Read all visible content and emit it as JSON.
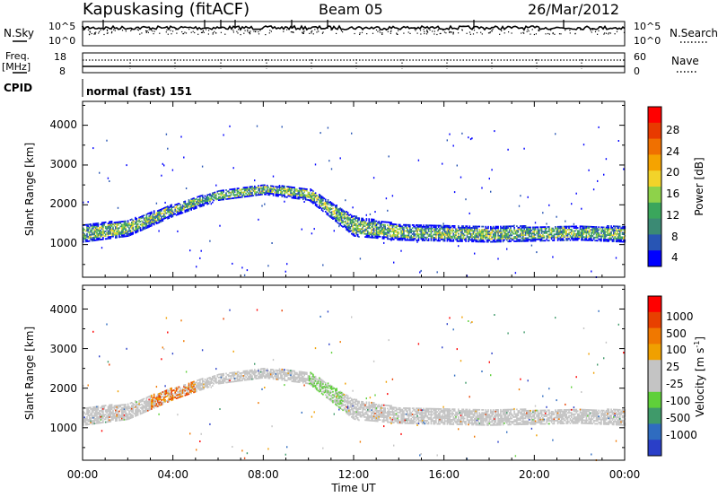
{
  "header": {
    "station": "Kapuskasing (fitACF)",
    "beam": "Beam 05",
    "date": "26/Mar/2012"
  },
  "panels": {
    "nsky_label": "N.Sky",
    "nsky_ticks": [
      "10^5",
      "10^0"
    ],
    "nsearch_label": "N.Search",
    "nsearch_ticks": [
      "10^5",
      "10^0"
    ],
    "freq_label_1": "Freq.",
    "freq_label_2": "[MHz]",
    "freq_ticks": [
      "18",
      "8"
    ],
    "nave_label": "Nave",
    "nave_ticks": [
      "60",
      "0"
    ],
    "cpid_label": "CPID",
    "cpid_value": "normal (fast) 151"
  },
  "colors": {
    "power_scale": [
      "#0000ff",
      "#2855b4",
      "#3b8a74",
      "#3aa65c",
      "#8ed24a",
      "#f2d32a",
      "#f5a300",
      "#f07000",
      "#e83a00",
      "#ff0000"
    ],
    "velocity_scale": [
      "#2a3fc8",
      "#2f6cc0",
      "#3f9a6a",
      "#5fd03a",
      "#c4c4c4",
      "#c4c4c4",
      "#f0a000",
      "#f07800",
      "#e84000",
      "#ff0000"
    ]
  },
  "chart_data": [
    {
      "type": "heatmap",
      "title": "",
      "ylabel": "Slant Range [km]",
      "xlabel": "",
      "ylim": [
        180,
        4600
      ],
      "xlim": [
        "00:00",
        "24:00"
      ],
      "yticks": [
        "1000",
        "2000",
        "3000",
        "4000"
      ],
      "xticks": [],
      "colorbar": {
        "label": "Power [dB]",
        "ticks": [
          "4",
          "8",
          "12",
          "16",
          "20",
          "24",
          "28"
        ],
        "range": [
          0,
          30
        ]
      },
      "echo_band_km": [
        {
          "t_hr": 0,
          "low": 1050,
          "high": 1500
        },
        {
          "t_hr": 2,
          "low": 1200,
          "high": 1600
        },
        {
          "t_hr": 4,
          "low": 1700,
          "high": 2000
        },
        {
          "t_hr": 6,
          "low": 2100,
          "high": 2350
        },
        {
          "t_hr": 8,
          "low": 2250,
          "high": 2500
        },
        {
          "t_hr": 10,
          "low": 2100,
          "high": 2400
        },
        {
          "t_hr": 12,
          "low": 1200,
          "high": 1700
        },
        {
          "t_hr": 14,
          "low": 1100,
          "high": 1500
        },
        {
          "t_hr": 18,
          "low": 1050,
          "high": 1450
        },
        {
          "t_hr": 22,
          "low": 1100,
          "high": 1450
        },
        {
          "t_hr": 24,
          "low": 1050,
          "high": 1450
        }
      ]
    },
    {
      "type": "heatmap",
      "title": "",
      "ylabel": "Slant Range [km]",
      "xlabel": "Time UT",
      "ylim": [
        180,
        4600
      ],
      "xlim": [
        "00:00",
        "24:00"
      ],
      "yticks": [
        "1000",
        "2000",
        "3000",
        "4000"
      ],
      "xticks": [
        "00:00",
        "04:00",
        "08:00",
        "12:00",
        "16:00",
        "20:00",
        "00:00"
      ],
      "colorbar": {
        "label_main": "Velocity  [m s",
        "label_sup": "-1",
        "label_end": "]",
        "ticks": [
          "1000",
          "500",
          "100",
          "25",
          "-25",
          "-100",
          "-500",
          "-1000"
        ]
      }
    }
  ]
}
